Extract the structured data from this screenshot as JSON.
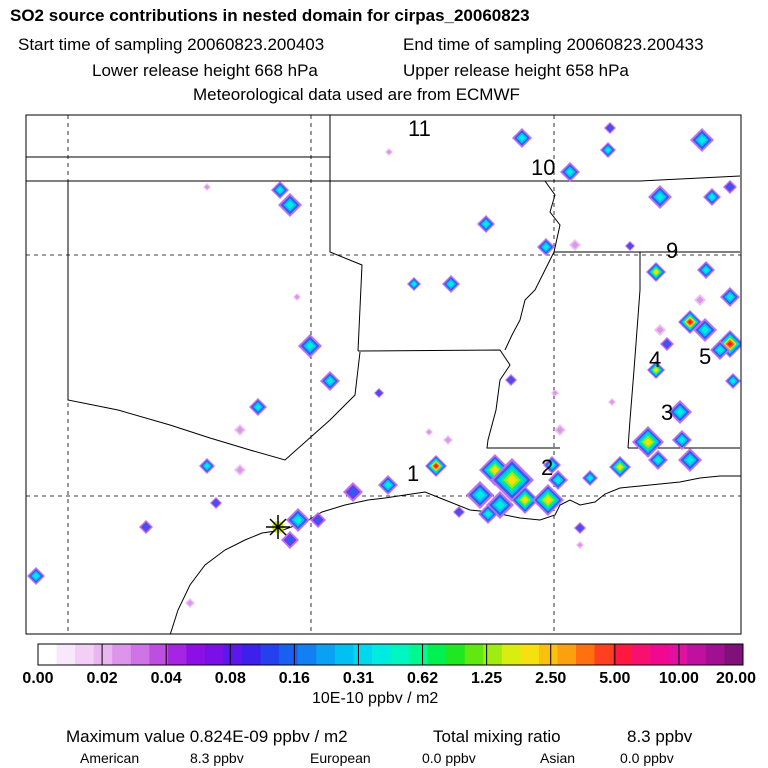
{
  "header": {
    "title": "SO2 source contributions in nested domain for cirpas_20060823",
    "start_label": "Start time of sampling 20060823.200403",
    "end_label": "End time of sampling 20060823.200433",
    "lower_label": "Lower release height  668 hPa",
    "upper_label": "Upper release height  658 hPa",
    "met_label": "Meteorological data used are from ECMWF"
  },
  "map": {
    "region_labels": [
      {
        "id": "1",
        "text": "1"
      },
      {
        "id": "2",
        "text": "2"
      },
      {
        "id": "3",
        "text": "3"
      },
      {
        "id": "4",
        "text": "4"
      },
      {
        "id": "5",
        "text": "5"
      },
      {
        "id": "9",
        "text": "9"
      },
      {
        "id": "10",
        "text": "10"
      },
      {
        "id": "11",
        "text": "11"
      }
    ],
    "colors": {
      "water": "#ffffff",
      "border": "#000000",
      "grid": "#000000",
      "marker": "#008000"
    }
  },
  "colorbar": {
    "ticks": [
      "0.00",
      "0.02",
      "0.04",
      "0.08",
      "0.16",
      "0.31",
      "0.62",
      "1.25",
      "2.50",
      "5.00",
      "10.00",
      "20.00"
    ],
    "colors": [
      "#ffffff",
      "#f9e8fb",
      "#f2cff5",
      "#e9b6f0",
      "#dd95eb",
      "#cf74e6",
      "#bd4fe0",
      "#a525e2",
      "#8c0fe6",
      "#7a0fe8",
      "#5c17ea",
      "#3d20ec",
      "#2540ee",
      "#1a60f0",
      "#1280f2",
      "#0aa0f4",
      "#00c0f4",
      "#00d8ee",
      "#00ece0",
      "#00f6c0",
      "#00f890",
      "#00f050",
      "#20e820",
      "#60e810",
      "#a0ec10",
      "#d8ee10",
      "#f6e010",
      "#fac010",
      "#fca010",
      "#fe7010",
      "#fe4020",
      "#ff1840",
      "#f81070",
      "#f00890",
      "#e010a0",
      "#c010a0",
      "#a01090",
      "#80107a"
    ],
    "units": "10E-10 ppbv / m2"
  },
  "footer": {
    "max_label": "Maximum value  0.824E-09 ppbv / m2",
    "mix_label": "Total mixing ratio",
    "mix_value": "8.3 ppbv",
    "sources": [
      {
        "name": "American",
        "value": "8.3 ppbv"
      },
      {
        "name": "European",
        "value": "0.0 ppbv"
      },
      {
        "name": "Asian",
        "value": "0.0 ppbv"
      }
    ]
  }
}
